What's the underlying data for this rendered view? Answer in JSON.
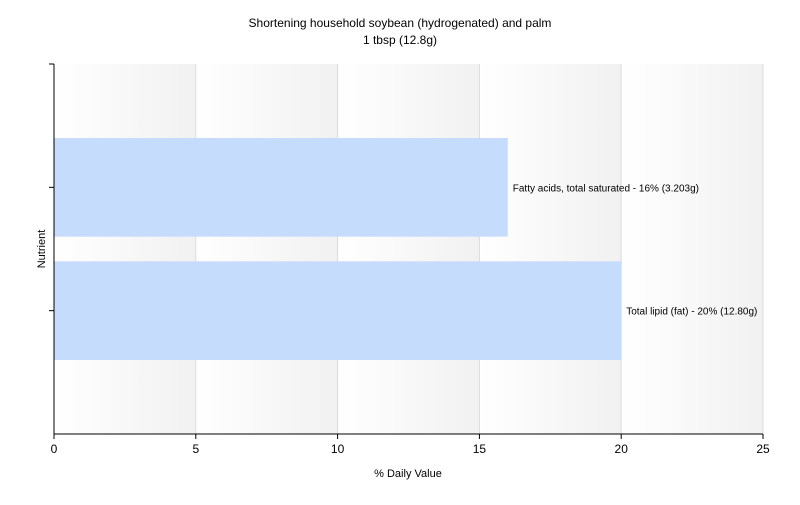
{
  "chart_data": {
    "type": "bar",
    "orientation": "horizontal",
    "title": "Shortening household soybean (hydrogenated) and palm",
    "subtitle": "1 tbsp (12.8g)",
    "xlabel": "% Daily Value",
    "ylabel": "Nutrient",
    "xlim": [
      0,
      25
    ],
    "xticks": [
      "0",
      "5",
      "10",
      "15",
      "20",
      "25"
    ],
    "grid": true,
    "bar_color": "#c5dcfd",
    "categories": [
      "Fatty acids, total saturated",
      "Total lipid (fat)"
    ],
    "values": [
      16,
      20
    ],
    "data_labels": [
      "Fatty acids, total saturated - 16% (3.203g)",
      "Total lipid (fat) - 20% (12.80g)"
    ]
  }
}
